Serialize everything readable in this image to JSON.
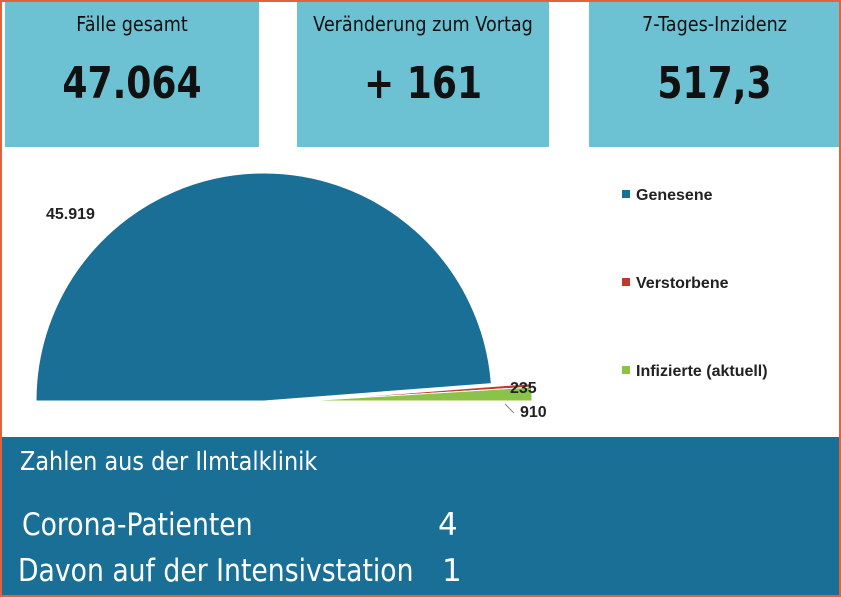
{
  "kpis": [
    {
      "label": "Fälle gesamt",
      "value": "47.064"
    },
    {
      "label": "Veränderung zum Vortag",
      "value": "+ 161"
    },
    {
      "label": "7-Tages-Inzidenz",
      "value": "517,3"
    }
  ],
  "chart_data": {
    "type": "pie",
    "categories": [
      "Genesene",
      "Verstorbene",
      "Infizierte (aktuell)"
    ],
    "values": [
      45919,
      235,
      910
    ],
    "value_labels": [
      "45.919",
      "235",
      "910"
    ],
    "colors": [
      "#1a6f97",
      "#c0392b",
      "#8bc34a"
    ],
    "style": "half-pie",
    "legend_position": "right"
  },
  "clinic": {
    "heading": "Zahlen aus der Ilmtalklinik",
    "rows": [
      {
        "label": "Corona-Patienten",
        "value": "4"
      },
      {
        "label": "Davon auf der Intensivstation",
        "value": "1"
      }
    ]
  }
}
